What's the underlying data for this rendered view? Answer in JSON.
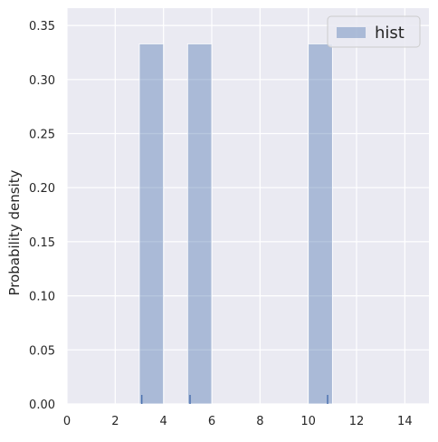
{
  "chart_data": {
    "type": "bar",
    "subtype": "histogram",
    "title": "",
    "xlabel": "",
    "ylabel": "Probability density",
    "xlim": [
      0,
      15
    ],
    "ylim": [
      0,
      0.366
    ],
    "xticks": [
      0,
      2,
      4,
      6,
      8,
      10,
      12,
      14
    ],
    "yticks": [
      0.0,
      0.05,
      0.1,
      0.15,
      0.2,
      0.25,
      0.3,
      0.35
    ],
    "ytick_labels": [
      "0.00",
      "0.05",
      "0.10",
      "0.15",
      "0.20",
      "0.25",
      "0.30",
      "0.35"
    ],
    "grid": true,
    "legend": {
      "position": "top-right",
      "entries": [
        "hist"
      ]
    },
    "series": [
      {
        "name": "hist",
        "bins": [
          {
            "x0": 3.0,
            "x1": 4.0,
            "density": 0.333
          },
          {
            "x0": 5.0,
            "x1": 6.0,
            "density": 0.333
          },
          {
            "x0": 10.0,
            "x1": 11.0,
            "density": 0.333
          }
        ],
        "rug": [
          3.1,
          5.1,
          10.8
        ]
      }
    ],
    "colors": {
      "background": "#eaeaf2",
      "grid": "#ffffff",
      "bar_fill": "#4c72b0",
      "bar_opacity": 0.4,
      "rug": "#4c72b0"
    }
  }
}
